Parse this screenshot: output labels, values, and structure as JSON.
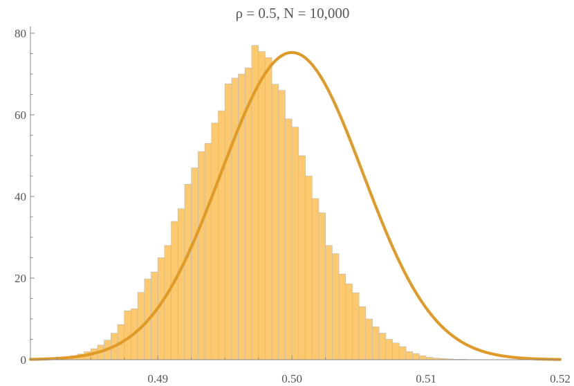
{
  "chart_data": {
    "type": "bar",
    "title": "ρ = 0.5, N = 10,000",
    "xlabel": "",
    "ylabel": "",
    "xlim": [
      0.4805,
      0.52
    ],
    "ylim": [
      0,
      80
    ],
    "x_ticks": [
      "0.49",
      "0.50",
      "0.51",
      "0.52"
    ],
    "y_ticks": [
      "0",
      "20",
      "40",
      "60",
      "80"
    ],
    "grid": false,
    "bin_width": 0.0005,
    "bin_start": 0.4805,
    "series": [
      {
        "kind": "histogram",
        "values": [
          0.1,
          0.1,
          0.2,
          0.2,
          0.4,
          0.6,
          1.0,
          1.4,
          2.0,
          2.7,
          3.6,
          4.8,
          6.5,
          8.6,
          12.0,
          12.5,
          16.5,
          19.8,
          21.5,
          25.0,
          28.0,
          33.9,
          37.0,
          43.0,
          47.0,
          51.0,
          53.0,
          58.0,
          61.0,
          67.6,
          69.0,
          70.0,
          71.5,
          77.0,
          75.5,
          74.0,
          67.5,
          66.0,
          59.0,
          57.0,
          50.0,
          45.0,
          39.5,
          36.0,
          28.0,
          26.0,
          21.0,
          18.6,
          16.4,
          13.0,
          10.0,
          8.1,
          6.5,
          5.0,
          4.1,
          3.2,
          2.0,
          1.5,
          1.0,
          0.6,
          0.4,
          0.3,
          0.2,
          0.1,
          0.1,
          0.05,
          0.05,
          0.0,
          0.0,
          0.0,
          0.0,
          0.0,
          0.0,
          0.0,
          0.0,
          0.0,
          0.0,
          0.0,
          0.0
        ]
      },
      {
        "kind": "line",
        "distribution": "normal",
        "mean": 0.5,
        "sd": 0.0053,
        "x_range": [
          0.4805,
          0.52
        ]
      }
    ]
  },
  "colors": {
    "bar_fill": "#fcc96e",
    "bar_stroke": "#b9b9b9",
    "curve": "#e09a28",
    "axis": "#888888",
    "text": "#555555"
  }
}
